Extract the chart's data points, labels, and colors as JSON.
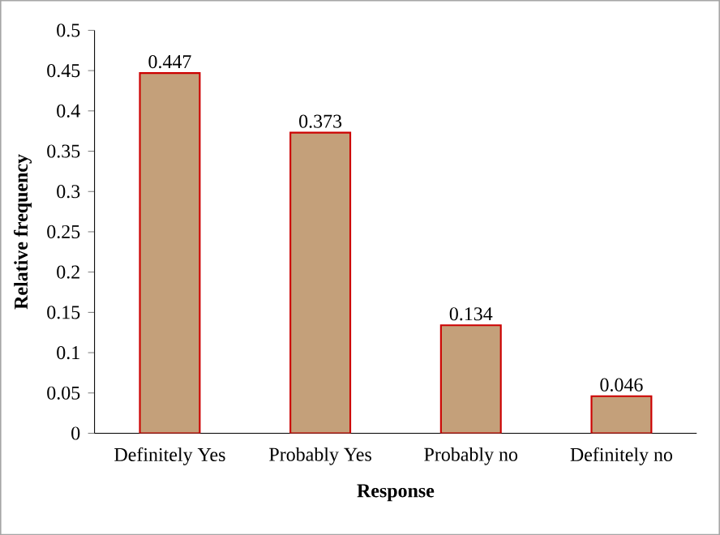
{
  "chart_data": {
    "type": "bar",
    "xlabel": "Response",
    "ylabel": "Relative frequency",
    "categories": [
      "Definitely Yes",
      "Probably Yes",
      "Probably no",
      "Definitely no"
    ],
    "values": [
      0.447,
      0.373,
      0.134,
      0.046
    ],
    "color": "#c4a07a",
    "ylim": [
      0,
      0.5
    ],
    "yticks": [
      0,
      0.05,
      0.1,
      0.15,
      0.2,
      0.25,
      0.3,
      0.35,
      0.4,
      0.45,
      0.5
    ],
    "data_labels": true
  }
}
